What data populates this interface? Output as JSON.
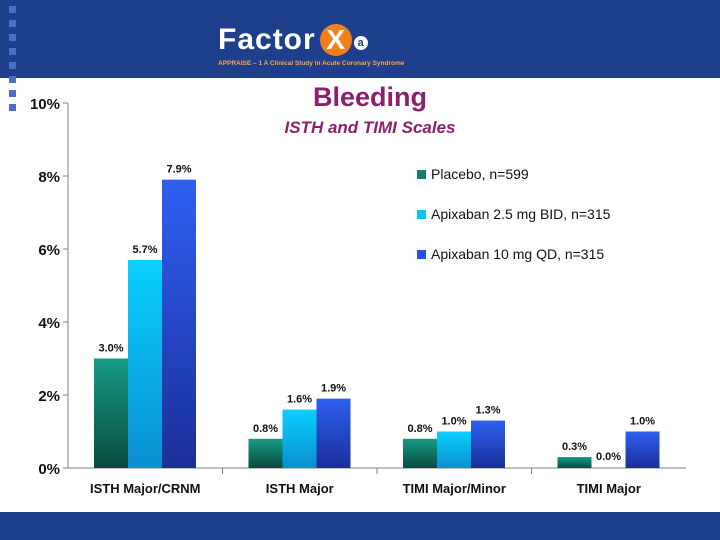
{
  "header": {
    "logo_text": "Factor",
    "logo_x": "X",
    "logo_a": "a",
    "study_line": "APPRAISE – 1   A Clinical Study in Acute Coronary Syndrome"
  },
  "chart_data": {
    "type": "bar",
    "title": "Bleeding",
    "subtitle": "ISTH and TIMI Scales",
    "categories": [
      "ISTH Major/CRNM",
      "ISTH Major",
      "TIMI Major/Minor",
      "TIMI Major"
    ],
    "series": [
      {
        "name": "Placebo, n=599",
        "values": [
          3.0,
          0.8,
          0.8,
          0.3
        ],
        "labels": [
          "3.0%",
          "0.8%",
          "0.8%",
          "0.3%"
        ],
        "color": "#13806f"
      },
      {
        "name": "Apixaban 2.5 mg BID, n=315",
        "values": [
          5.7,
          1.6,
          1.0,
          0.0
        ],
        "labels": [
          "5.7%",
          "1.6%",
          "1.0%",
          "0.0%"
        ],
        "color": "#09c6f3"
      },
      {
        "name": "Apixaban 10 mg QD, n=315",
        "values": [
          7.9,
          1.9,
          1.3,
          1.0
        ],
        "labels": [
          "7.9%",
          "1.9%",
          "1.3%",
          "1.0%"
        ],
        "color": "#2850db"
      }
    ],
    "yticks": [
      "0%",
      "2%",
      "4%",
      "6%",
      "8%",
      "10%"
    ],
    "ylim": [
      0,
      10
    ],
    "xlabel": "",
    "ylabel": "",
    "legend_position": "top-right"
  }
}
